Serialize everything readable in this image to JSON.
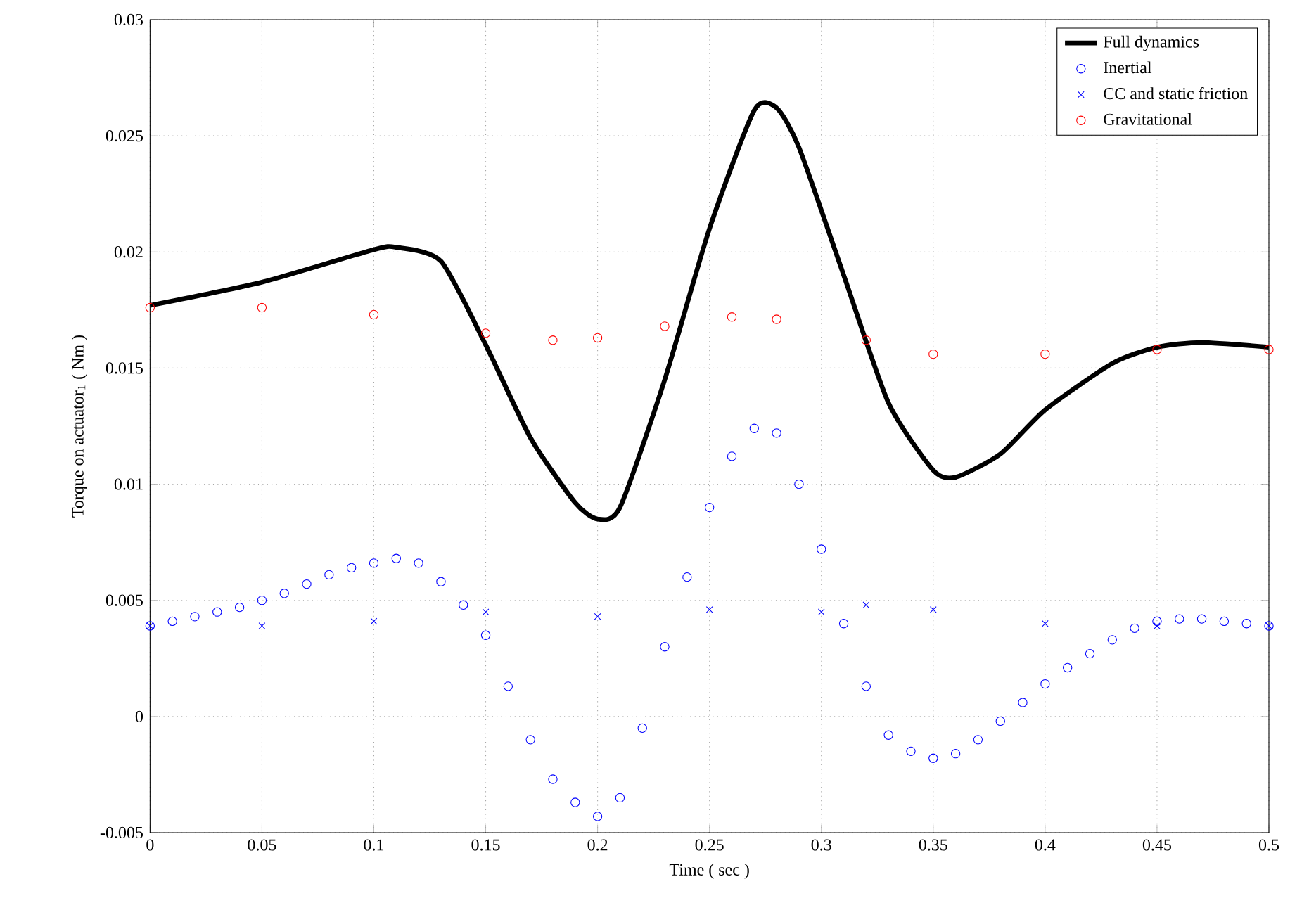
{
  "chart_data": {
    "type": "line",
    "xlabel": "Time ( sec )",
    "ylabel": "Torque on actuator$_{1}$ ( Nm )",
    "xlim": [
      0,
      0.5
    ],
    "ylim": [
      -0.005,
      0.03
    ],
    "xticks": [
      0,
      0.05,
      0.1,
      0.15,
      0.2,
      0.25,
      0.3,
      0.35,
      0.4,
      0.45,
      0.5
    ],
    "yticks": [
      -0.005,
      0,
      0.005,
      0.01,
      0.015,
      0.02,
      0.025,
      0.03
    ],
    "grid": true,
    "legend": "top right",
    "series": [
      {
        "name": "Full dynamics",
        "color": "#000000",
        "line_style": "solid",
        "x": [
          0,
          0.05,
          0.1,
          0.11,
          0.13,
          0.15,
          0.17,
          0.19,
          0.2,
          0.21,
          0.23,
          0.25,
          0.27,
          0.28,
          0.29,
          0.31,
          0.33,
          0.35,
          0.36,
          0.38,
          0.4,
          0.43,
          0.45,
          0.47,
          0.5
        ],
        "values": [
          0.0177,
          0.0187,
          0.0201,
          0.0202,
          0.0196,
          0.016,
          0.012,
          0.0092,
          0.0085,
          0.009,
          0.0145,
          0.021,
          0.0261,
          0.0262,
          0.0245,
          0.019,
          0.0135,
          0.0106,
          0.0103,
          0.0113,
          0.0132,
          0.0152,
          0.0159,
          0.0161,
          0.0159
        ]
      },
      {
        "name": "Inertial",
        "type": "scatter",
        "marker": "circle",
        "color": "#0000ff",
        "x": [
          0,
          0.01,
          0.02,
          0.03,
          0.04,
          0.05,
          0.06,
          0.07,
          0.08,
          0.09,
          0.1,
          0.11,
          0.12,
          0.13,
          0.14,
          0.15,
          0.16,
          0.17,
          0.18,
          0.19,
          0.2,
          0.21,
          0.22,
          0.23,
          0.24,
          0.25,
          0.26,
          0.27,
          0.28,
          0.29,
          0.3,
          0.31,
          0.32,
          0.33,
          0.34,
          0.35,
          0.36,
          0.37,
          0.38,
          0.39,
          0.4,
          0.41,
          0.42,
          0.43,
          0.44,
          0.45,
          0.46,
          0.47,
          0.48,
          0.49,
          0.5
        ],
        "values": [
          0.0039,
          0.0041,
          0.0043,
          0.0045,
          0.0047,
          0.005,
          0.0053,
          0.0057,
          0.0061,
          0.0064,
          0.0066,
          0.0068,
          0.0066,
          0.0058,
          0.0048,
          0.0035,
          0.0013,
          -0.001,
          -0.0027,
          -0.0037,
          -0.0043,
          -0.0035,
          -0.0005,
          0.003,
          0.006,
          0.009,
          0.0112,
          0.0124,
          0.0122,
          0.01,
          0.0072,
          0.004,
          0.0013,
          -0.0008,
          -0.0015,
          -0.0018,
          -0.0016,
          -0.001,
          -0.0002,
          0.0006,
          0.0014,
          0.0021,
          0.0027,
          0.0033,
          0.0038,
          0.0041,
          0.0042,
          0.0042,
          0.0041,
          0.004,
          0.0039
        ]
      },
      {
        "name": "CC and static friction",
        "type": "scatter",
        "marker": "cross",
        "color": "#0000ff",
        "x": [
          0,
          0.05,
          0.1,
          0.15,
          0.2,
          0.25,
          0.3,
          0.32,
          0.35,
          0.4,
          0.45,
          0.5
        ],
        "values": [
          0.0039,
          0.0039,
          0.0041,
          0.0045,
          0.0043,
          0.0046,
          0.0045,
          0.0048,
          0.0046,
          0.004,
          0.0039,
          0.0039
        ]
      },
      {
        "name": "Gravitational",
        "type": "scatter",
        "marker": "circle",
        "color": "#ff0000",
        "x": [
          0,
          0.05,
          0.1,
          0.15,
          0.18,
          0.2,
          0.23,
          0.26,
          0.28,
          0.32,
          0.35,
          0.4,
          0.45,
          0.5
        ],
        "values": [
          0.0176,
          0.0176,
          0.0173,
          0.0165,
          0.0162,
          0.0163,
          0.0168,
          0.0172,
          0.0171,
          0.0162,
          0.0156,
          0.0156,
          0.0158,
          0.0158
        ]
      }
    ]
  }
}
